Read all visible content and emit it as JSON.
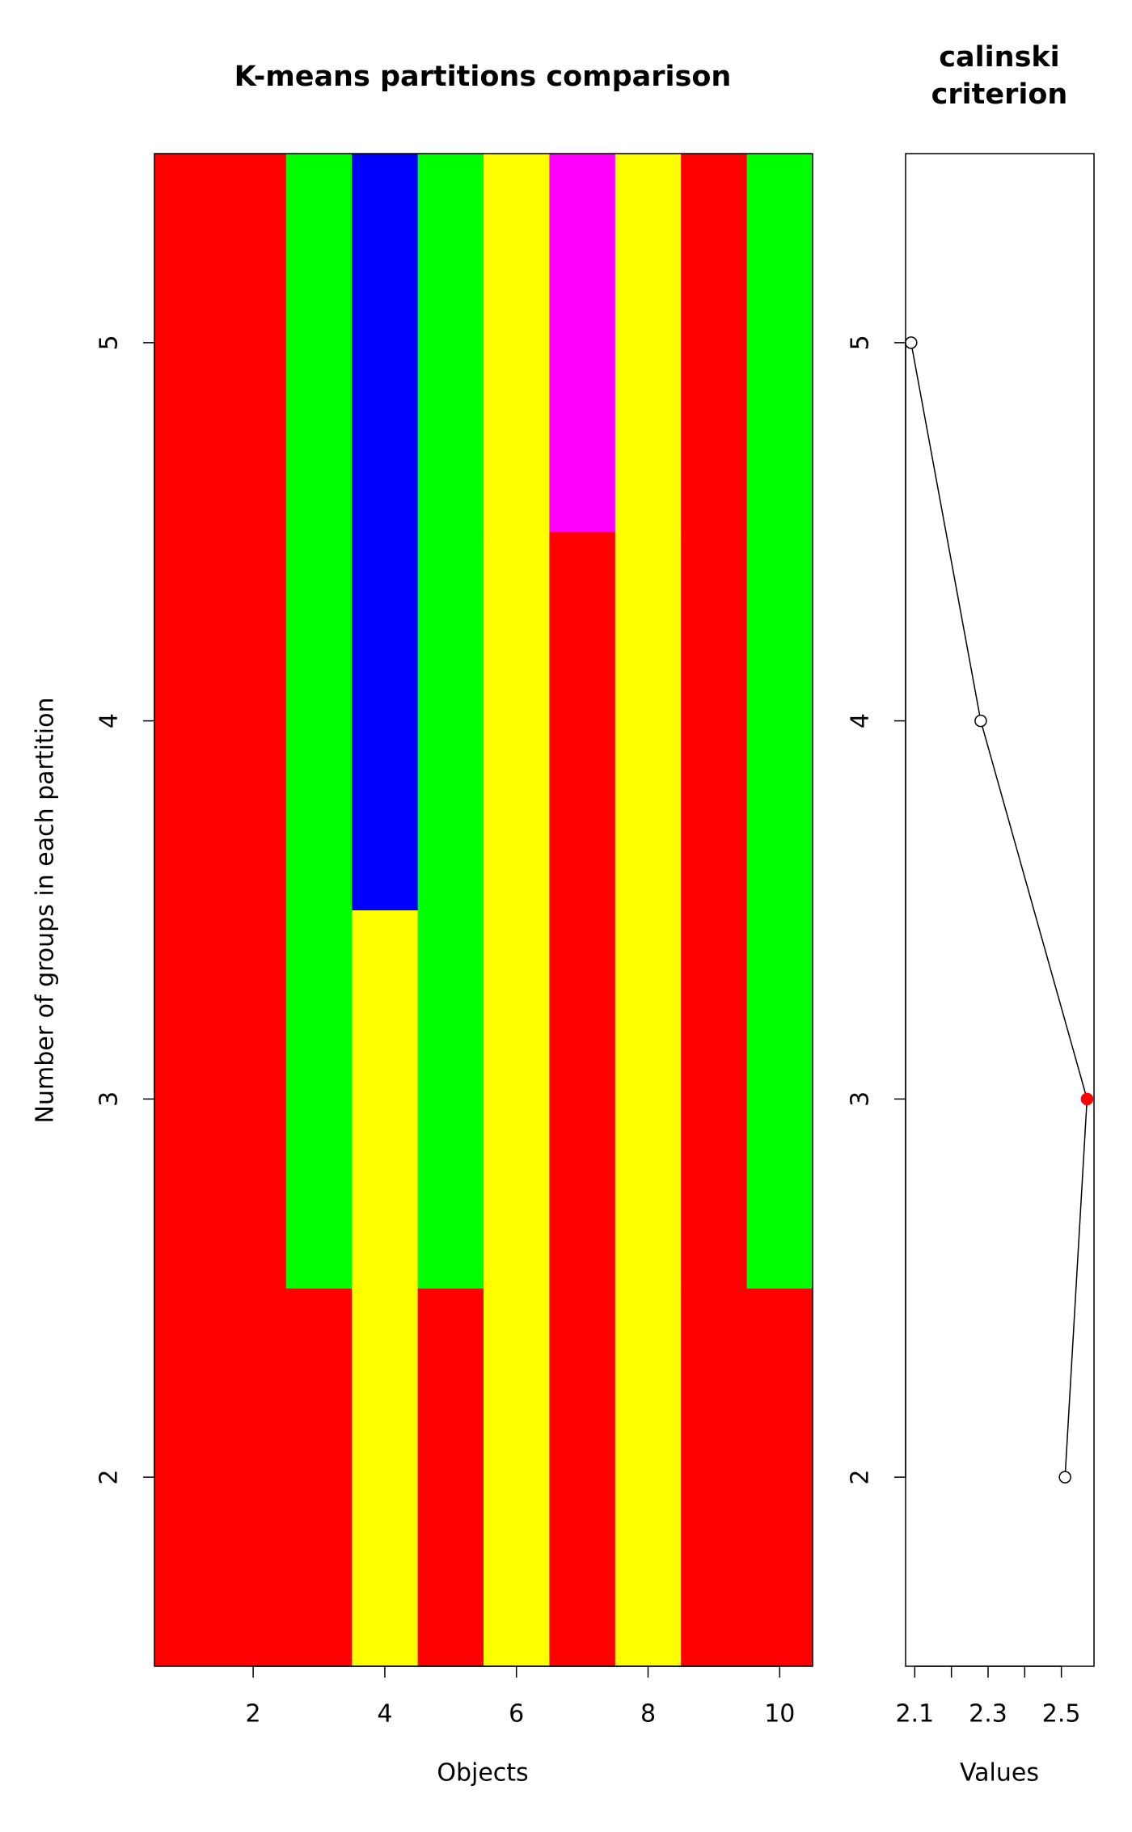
{
  "chart_data": [
    {
      "type": "heatmap",
      "title": "K-means partitions comparison",
      "xlabel": "Objects",
      "ylabel": "Number of groups in each partition",
      "x": [
        1,
        2,
        3,
        4,
        5,
        6,
        7,
        8,
        9,
        10
      ],
      "y": [
        2,
        3,
        4,
        5
      ],
      "cells": [
        [
          "#ff0000",
          "#ff0000",
          "#ff0000",
          "#ffff00",
          "#ff0000",
          "#ffff00",
          "#ff0000",
          "#ffff00",
          "#ff0000",
          "#ff0000"
        ],
        [
          "#ff0000",
          "#ff0000",
          "#00ff00",
          "#ffff00",
          "#00ff00",
          "#ffff00",
          "#ff0000",
          "#ffff00",
          "#ff0000",
          "#00ff00"
        ],
        [
          "#ff0000",
          "#ff0000",
          "#00ff00",
          "#0000ff",
          "#00ff00",
          "#ffff00",
          "#ff0000",
          "#ffff00",
          "#ff0000",
          "#00ff00"
        ],
        [
          "#ff0000",
          "#ff0000",
          "#00ff00",
          "#0000ff",
          "#00ff00",
          "#ffff00",
          "#ff00ff",
          "#ffff00",
          "#ff0000",
          "#00ff00"
        ]
      ],
      "xlim": [
        0.5,
        10.5
      ],
      "xticks": [
        2,
        4,
        6,
        8,
        10
      ],
      "ylim": [
        1.5,
        5.5
      ],
      "yticks": [
        2,
        3,
        4,
        5
      ]
    },
    {
      "type": "line",
      "title": [
        "calinski",
        "criterion"
      ],
      "xlabel": "Values",
      "y": [
        2,
        3,
        4,
        5
      ],
      "values": [
        2.51,
        2.57,
        2.28,
        2.09
      ],
      "point_colors": [
        "#ffffff",
        "#ff0000",
        "#ffffff",
        "#ffffff"
      ],
      "color": "#000000",
      "xlim": [
        2.075,
        2.589
      ],
      "xticks": [
        2.1,
        {
          "value": 2.2,
          "label": null
        },
        2.3,
        {
          "value": 2.4,
          "label": null
        },
        2.5
      ],
      "ylim": [
        1.5,
        5.5
      ],
      "yticks": [
        2,
        3,
        4,
        5
      ]
    }
  ]
}
